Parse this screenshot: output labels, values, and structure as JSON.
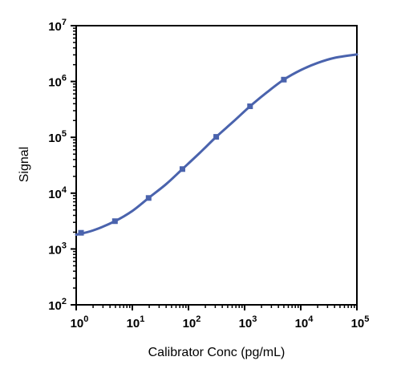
{
  "chart_data": {
    "type": "line",
    "title": "",
    "xlabel": "Calibrator Conc (pg/mL)",
    "ylabel": "Signal",
    "x_scale": "log",
    "y_scale": "log",
    "xlim": [
      1,
      100000
    ],
    "ylim": [
      100,
      10000000
    ],
    "grid": false,
    "legend": "none",
    "x_ticks": [
      {
        "value": 1,
        "base": "10",
        "exp": "0"
      },
      {
        "value": 10,
        "base": "10",
        "exp": "1"
      },
      {
        "value": 100,
        "base": "10",
        "exp": "2"
      },
      {
        "value": 1000,
        "base": "10",
        "exp": "3"
      },
      {
        "value": 10000,
        "base": "10",
        "exp": "4"
      },
      {
        "value": 100000,
        "base": "10",
        "exp": "5"
      }
    ],
    "y_ticks": [
      {
        "value": 100,
        "base": "10",
        "exp": "2"
      },
      {
        "value": 1000,
        "base": "10",
        "exp": "3"
      },
      {
        "value": 10000,
        "base": "10",
        "exp": "4"
      },
      {
        "value": 100000,
        "base": "10",
        "exp": "5"
      },
      {
        "value": 1000000,
        "base": "10",
        "exp": "6"
      },
      {
        "value": 10000000,
        "base": "10",
        "exp": "7"
      }
    ],
    "series": [
      {
        "color": "#4a63ad",
        "marker": "square",
        "points": [
          {
            "x": 1.22,
            "y": 1950
          },
          {
            "x": 4.9,
            "y": 3150
          },
          {
            "x": 19.5,
            "y": 8200
          },
          {
            "x": 78,
            "y": 27000
          },
          {
            "x": 312,
            "y": 102000
          },
          {
            "x": 1250,
            "y": 360000
          },
          {
            "x": 5000,
            "y": 1080000
          }
        ],
        "fit_curve": [
          {
            "x": 1,
            "y": 1800
          },
          {
            "x": 2,
            "y": 2150
          },
          {
            "x": 4.9,
            "y": 3150
          },
          {
            "x": 10,
            "y": 4800
          },
          {
            "x": 19.5,
            "y": 8200
          },
          {
            "x": 40,
            "y": 14500
          },
          {
            "x": 78,
            "y": 27000
          },
          {
            "x": 160,
            "y": 53000
          },
          {
            "x": 312,
            "y": 102000
          },
          {
            "x": 625,
            "y": 190000
          },
          {
            "x": 1250,
            "y": 360000
          },
          {
            "x": 2500,
            "y": 640000
          },
          {
            "x": 5000,
            "y": 1080000
          },
          {
            "x": 10000,
            "y": 1600000
          },
          {
            "x": 20000,
            "y": 2150000
          },
          {
            "x": 40000,
            "y": 2650000
          },
          {
            "x": 100000,
            "y": 3050000
          }
        ]
      }
    ]
  }
}
